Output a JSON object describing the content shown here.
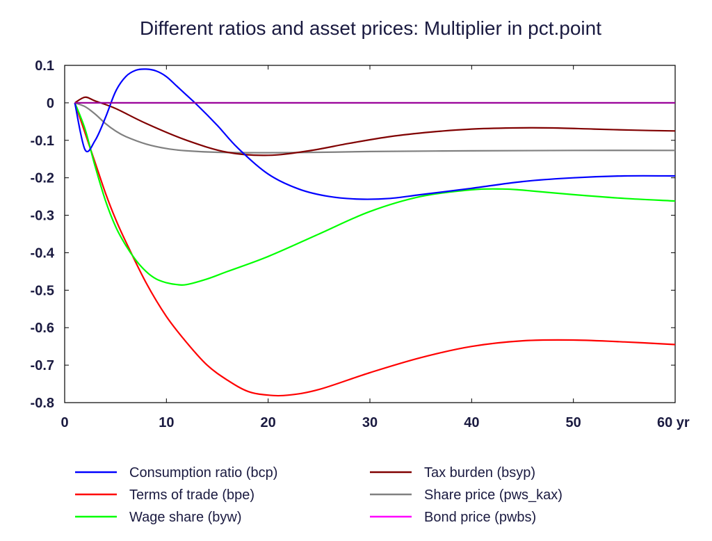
{
  "chart_data": {
    "type": "line",
    "title": "Different ratios and asset prices: Multiplier in pct.point",
    "xlabel": "",
    "ylabel": "",
    "x_unit": "yr",
    "xlim": [
      0,
      60
    ],
    "ylim": [
      -0.8,
      0.1
    ],
    "x_ticks": [
      0,
      10,
      20,
      30,
      40,
      50,
      60
    ],
    "x_tick_labels": [
      "0",
      "10",
      "20",
      "30",
      "40",
      "50",
      "60 yr"
    ],
    "y_ticks": [
      0.1,
      0,
      -0.1,
      -0.2,
      -0.3,
      -0.4,
      -0.5,
      -0.6,
      -0.7,
      -0.8
    ],
    "y_tick_labels": [
      "0.1",
      "0",
      "-0.1",
      "-0.2",
      "-0.3",
      "-0.4",
      "-0.5",
      "-0.6",
      "-0.7",
      "-0.8"
    ],
    "grid": false,
    "legend_position": "bottom",
    "series": [
      {
        "name": "Consumption ratio (bcp)",
        "color": "#0000ff",
        "x": [
          1,
          2,
          3,
          4,
          5,
          6,
          7,
          8,
          9,
          10,
          11,
          12,
          13,
          15,
          17,
          20,
          23,
          26,
          29,
          32,
          35,
          40,
          45,
          50,
          55,
          60
        ],
        "y": [
          0,
          -0.125,
          -0.1,
          -0.04,
          0.03,
          0.07,
          0.087,
          0.09,
          0.085,
          0.07,
          0.045,
          0.02,
          -0.005,
          -0.06,
          -0.12,
          -0.19,
          -0.23,
          -0.25,
          -0.257,
          -0.255,
          -0.245,
          -0.228,
          -0.21,
          -0.2,
          -0.195,
          -0.195
        ]
      },
      {
        "name": "Terms of trade (bpe)",
        "color": "#ff0000",
        "x": [
          1,
          2,
          3,
          4,
          5,
          6,
          8,
          10,
          12,
          14,
          16,
          18,
          20,
          22,
          25,
          30,
          35,
          40,
          45,
          50,
          55,
          60
        ],
        "y": [
          0,
          -0.08,
          -0.16,
          -0.24,
          -0.31,
          -0.37,
          -0.48,
          -0.57,
          -0.64,
          -0.7,
          -0.74,
          -0.77,
          -0.78,
          -0.78,
          -0.765,
          -0.72,
          -0.68,
          -0.65,
          -0.635,
          -0.633,
          -0.638,
          -0.645
        ]
      },
      {
        "name": "Wage share (byw)",
        "color": "#00ff00",
        "x": [
          1,
          2,
          3,
          4,
          5,
          6,
          7,
          8,
          9,
          10,
          11,
          12,
          14,
          16,
          20,
          25,
          30,
          35,
          40,
          43,
          45,
          50,
          55,
          60
        ],
        "y": [
          0,
          -0.07,
          -0.17,
          -0.26,
          -0.33,
          -0.38,
          -0.42,
          -0.45,
          -0.47,
          -0.48,
          -0.485,
          -0.485,
          -0.47,
          -0.45,
          -0.41,
          -0.35,
          -0.29,
          -0.25,
          -0.232,
          -0.23,
          -0.233,
          -0.245,
          -0.255,
          -0.262
        ]
      },
      {
        "name": "Tax burden (bsyp)",
        "color": "#800000",
        "x": [
          1,
          2,
          3,
          5,
          8,
          12,
          16,
          20,
          24,
          28,
          32,
          36,
          40,
          44,
          48,
          52,
          56,
          60
        ],
        "y": [
          0,
          0.015,
          0.005,
          -0.015,
          -0.055,
          -0.1,
          -0.132,
          -0.14,
          -0.128,
          -0.108,
          -0.09,
          -0.078,
          -0.07,
          -0.067,
          -0.067,
          -0.07,
          -0.073,
          -0.075
        ]
      },
      {
        "name": "Share price (pws_kax)",
        "color": "#808080",
        "x": [
          1,
          2,
          3,
          4,
          5,
          6,
          8,
          10,
          12,
          15,
          20,
          25,
          30,
          40,
          50,
          60
        ],
        "y": [
          0,
          -0.01,
          -0.03,
          -0.055,
          -0.075,
          -0.09,
          -0.11,
          -0.122,
          -0.128,
          -0.132,
          -0.133,
          -0.132,
          -0.13,
          -0.128,
          -0.127,
          -0.127
        ]
      },
      {
        "name": "Bond price (pwbs)",
        "color": "#990099",
        "legend_color": "#ff00ff",
        "x": [
          1,
          60
        ],
        "y": [
          0,
          0
        ]
      }
    ]
  }
}
